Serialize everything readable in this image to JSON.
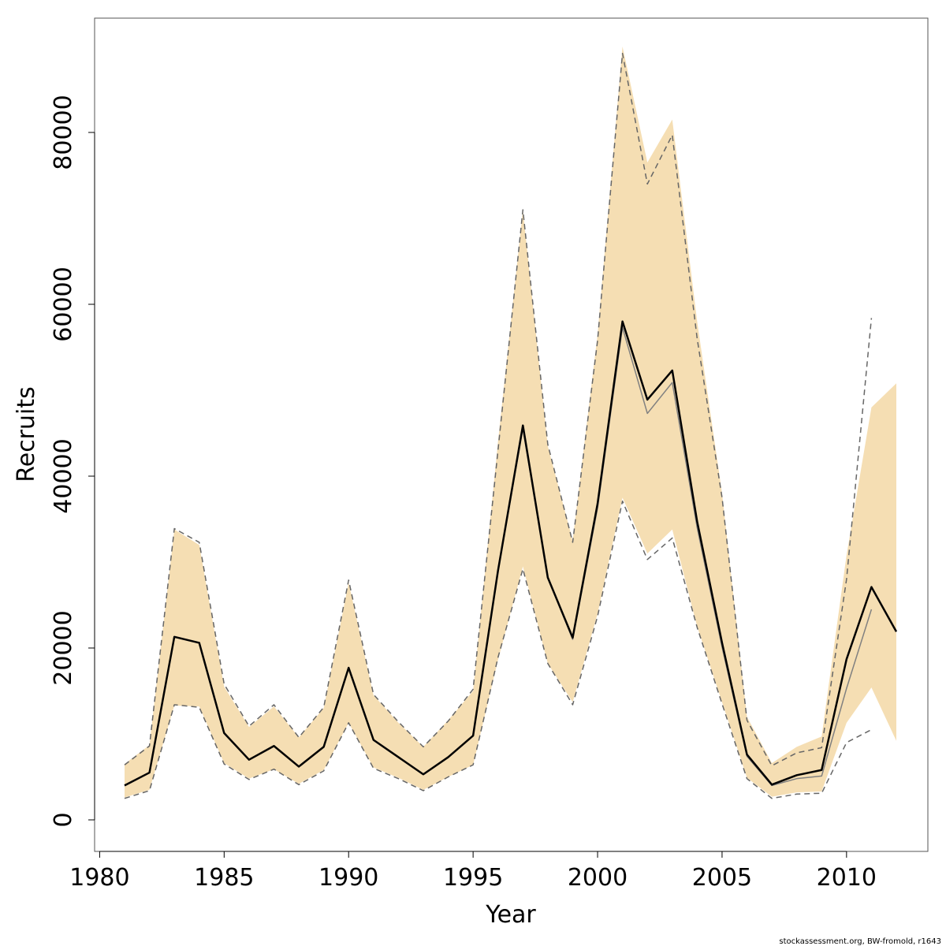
{
  "chart_data": {
    "type": "line",
    "xlabel": "Year",
    "ylabel": "Recruits",
    "xlim": [
      1980,
      2013
    ],
    "ylim": [
      0,
      90000
    ],
    "x_ticks": [
      1980,
      1985,
      1990,
      1995,
      2000,
      2005,
      2010
    ],
    "y_ticks": [
      0,
      20000,
      40000,
      60000,
      80000
    ],
    "x_tick_labels": [
      "1980",
      "1985",
      "1990",
      "1995",
      "2000",
      "2005",
      "2010"
    ],
    "y_tick_labels": [
      "0",
      "20000",
      "40000",
      "60000",
      "80000"
    ],
    "grid": false,
    "colors": {
      "band": "#f5deb3",
      "current": "#000000",
      "previous": "#808080",
      "previous_ci": "#666666"
    },
    "band": {
      "x": [
        1981,
        1982,
        1983,
        1984,
        1985,
        1986,
        1987,
        1988,
        1989,
        1990,
        1991,
        1992,
        1993,
        1994,
        1995,
        1996,
        1997,
        1998,
        1999,
        2000,
        2001,
        2002,
        2003,
        2004,
        2005,
        2006,
        2007,
        2008,
        2009,
        2010,
        2011,
        2012
      ],
      "upper": [
        6500,
        8700,
        33800,
        32000,
        15500,
        10800,
        13200,
        9600,
        13000,
        27600,
        14500,
        11300,
        8500,
        11600,
        15000,
        44000,
        71000,
        43500,
        32500,
        56500,
        90000,
        76500,
        81500,
        58000,
        38000,
        12000,
        6600,
        8500,
        9700,
        30800,
        48000,
        50800
      ],
      "lower": [
        2600,
        3500,
        13300,
        13200,
        6600,
        4800,
        5900,
        4200,
        5800,
        11300,
        6100,
        4900,
        3500,
        5000,
        6400,
        18600,
        29500,
        18200,
        13700,
        24000,
        37500,
        31000,
        33800,
        22500,
        13700,
        4900,
        2700,
        3200,
        3300,
        11300,
        15400,
        9200
      ]
    },
    "series": [
      {
        "x": [
          1981,
          1982,
          1983,
          1984,
          1985,
          1986,
          1987,
          1988,
          1989,
          1990,
          1991,
          1992,
          1993,
          1994,
          1995,
          1996,
          1997,
          1998,
          1999,
          2000,
          2001,
          2002,
          2003,
          2004,
          2005,
          2006,
          2007,
          2008,
          2009,
          2010,
          2011,
          2012
        ],
        "values": [
          4000,
          5500,
          21300,
          20600,
          10100,
          7000,
          8600,
          6200,
          8500,
          17700,
          9300,
          7300,
          5300,
          7300,
          9800,
          29000,
          45900,
          28200,
          21200,
          36800,
          58000,
          48900,
          52300,
          34700,
          20600,
          7600,
          4100,
          5200,
          5800,
          18700,
          27100,
          21900
        ],
        "style": "solid-thick"
      },
      {
        "x": [
          1981,
          1982,
          1983,
          1984,
          1985,
          1986,
          1987,
          1988,
          1989,
          1990,
          1991,
          1992,
          1993,
          1994,
          1995,
          1996,
          1997,
          1998,
          1999,
          2000,
          2001,
          2002,
          2003,
          2004,
          2005,
          2006,
          2007,
          2008,
          2009,
          2010,
          2011
        ],
        "values": [
          4000,
          5500,
          21300,
          20600,
          10100,
          7000,
          8600,
          6200,
          8500,
          17700,
          9300,
          7300,
          5300,
          7300,
          9800,
          29000,
          45500,
          28200,
          21000,
          36300,
          57300,
          47300,
          50900,
          34000,
          20100,
          7400,
          4000,
          4800,
          5100,
          15300,
          24500
        ],
        "style": "solid-thin"
      },
      {
        "x": [
          1981,
          1982,
          1983,
          1984,
          1985,
          1986,
          1987,
          1988,
          1989,
          1990,
          1991,
          1992,
          1993,
          1994,
          1995,
          1996,
          1997,
          1998,
          1999,
          2000,
          2001,
          2002,
          2003,
          2004,
          2005,
          2006,
          2007,
          2008,
          2009,
          2010,
          2011
        ],
        "values": [
          6400,
          8600,
          33900,
          32300,
          15800,
          10900,
          13400,
          9600,
          13100,
          27900,
          14600,
          11400,
          8500,
          11500,
          15200,
          43000,
          71000,
          43700,
          32300,
          55800,
          89200,
          74000,
          79700,
          56000,
          37500,
          11600,
          6300,
          7800,
          8400,
          28000,
          58400
        ],
        "style": "dashed-upper"
      },
      {
        "x": [
          1981,
          1982,
          1983,
          1984,
          1985,
          1986,
          1987,
          1988,
          1989,
          1990,
          1991,
          1992,
          1993,
          1994,
          1995,
          1996,
          1997,
          1998,
          1999,
          2000,
          2001,
          2002,
          2003,
          2004,
          2005,
          2006,
          2007,
          2008,
          2009,
          2010,
          2011
        ],
        "values": [
          2500,
          3400,
          13400,
          13100,
          6500,
          4700,
          5900,
          4100,
          5700,
          11300,
          6000,
          4800,
          3400,
          5000,
          6400,
          18900,
          29200,
          18200,
          13400,
          23700,
          37100,
          30300,
          32800,
          22400,
          13500,
          4800,
          2500,
          3000,
          3100,
          9000,
          10500
        ],
        "style": "dashed-lower"
      }
    ]
  },
  "footer": {
    "credit": "stockassessment.org, BW-fromold, r1643"
  }
}
